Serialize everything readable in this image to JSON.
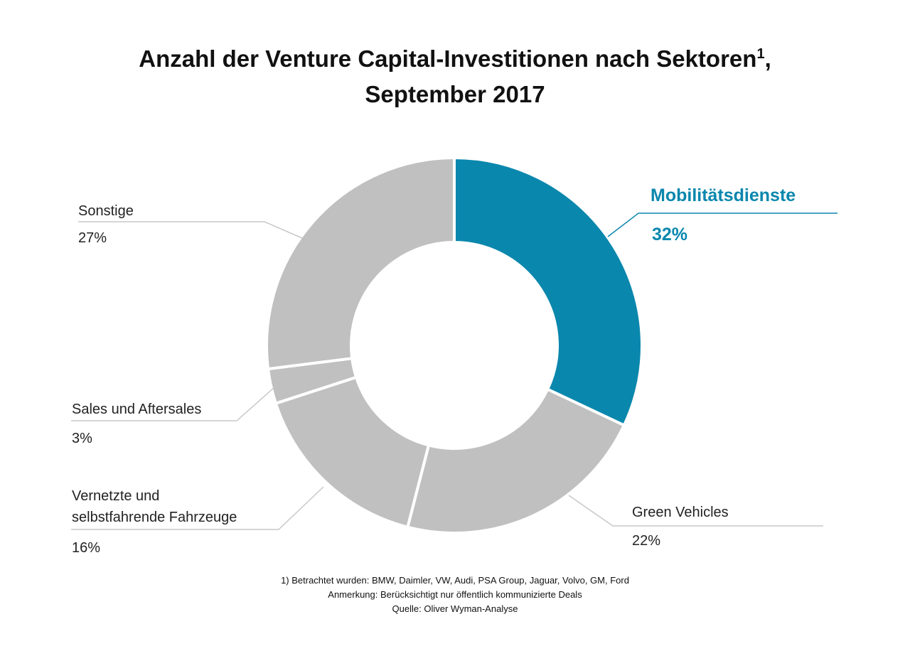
{
  "title": {
    "line1": "Anzahl der Venture Capital-Investitionen nach Sektoren",
    "footnote_mark": "1",
    "line1_suffix": ",",
    "line2": "September 2017"
  },
  "chart_data": {
    "type": "pie",
    "donut": true,
    "title": "Anzahl der Venture Capital-Investitionen nach Sektoren, September 2017",
    "categories": [
      "Mobilitätsdienste",
      "Green Vehicles",
      "Vernetzte und selbstfahrende Fahrzeuge",
      "Sales und Aftersales",
      "Sonstige"
    ],
    "values": [
      32,
      22,
      16,
      3,
      27
    ],
    "value_labels": [
      "32%",
      "22%",
      "16%",
      "3%",
      "27%"
    ],
    "colors": [
      "#0a87ad",
      "#c0c0c0",
      "#c0c0c0",
      "#c0c0c0",
      "#c0c0c0"
    ],
    "highlight_color": "#0a87ad",
    "label_colors": {
      "default": "#222222",
      "highlight": "#0a87ad"
    }
  },
  "labels": {
    "mobility": {
      "name": "Mobilitätsdienste",
      "pct": "32%"
    },
    "green": {
      "name": "Green Vehicles",
      "pct": "22%"
    },
    "connected": {
      "name_line1": "Vernetzte und",
      "name_line2": "selbstfahrende Fahrzeuge",
      "pct": "16%"
    },
    "sales": {
      "name": "Sales und Aftersales",
      "pct": "3%"
    },
    "other": {
      "name": "Sonstige",
      "pct": "27%"
    }
  },
  "footer": {
    "line1": "1)     Betrachtet wurden: BMW, Daimler, VW, Audi, PSA Group, Jaguar, Volvo, GM, Ford",
    "line2": "Anmerkung: Berücksichtigt nur öffentlich kommunizierte Deals",
    "line3": "Quelle: Oliver Wyman-Analyse"
  }
}
